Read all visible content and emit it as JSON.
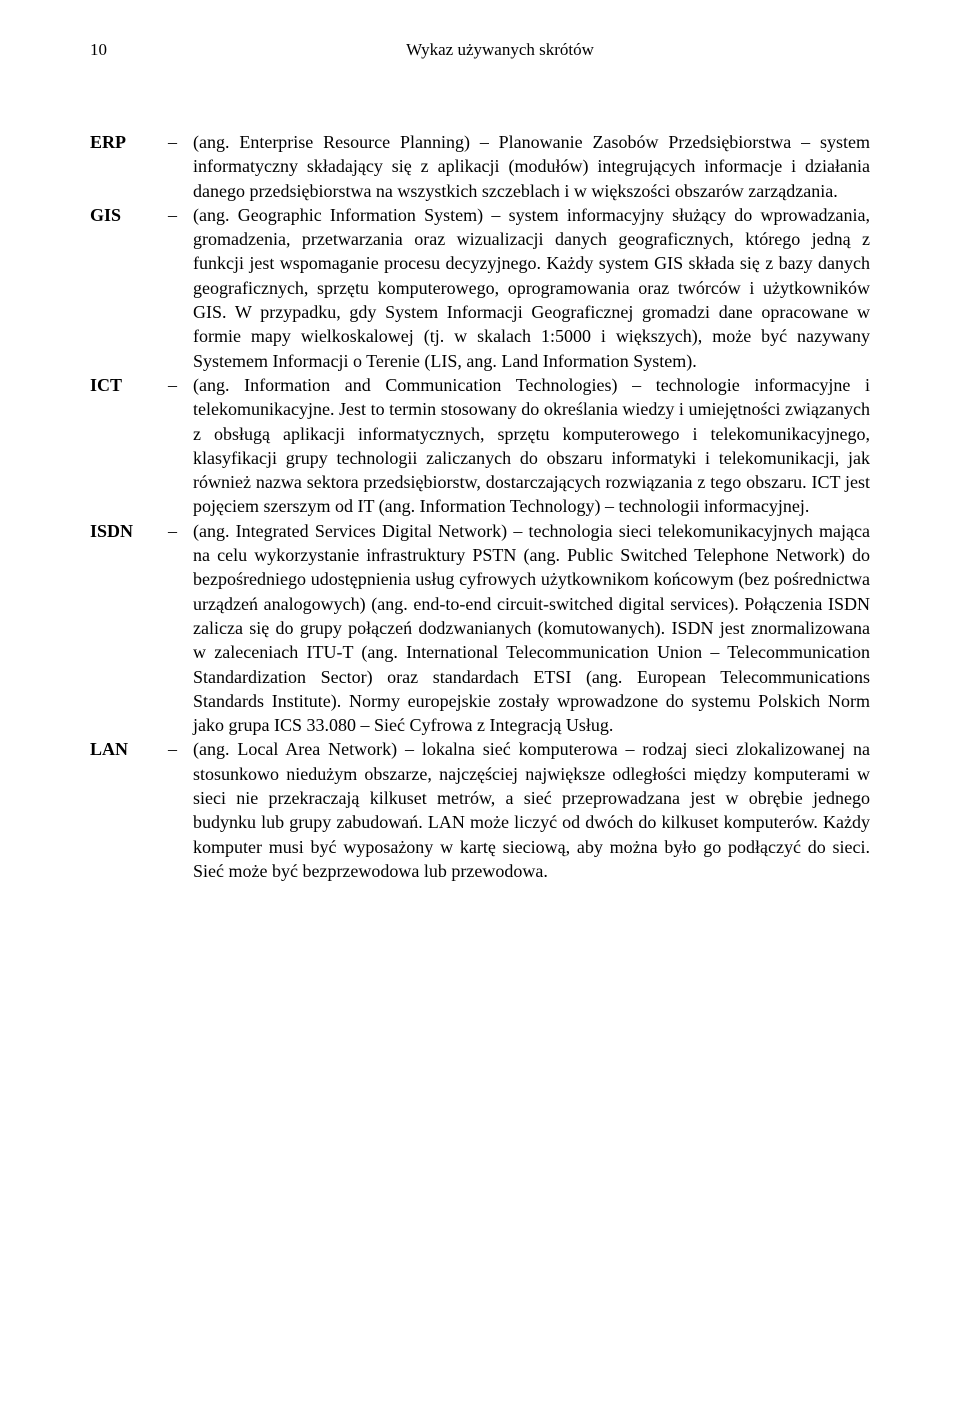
{
  "header": {
    "page_number": "10",
    "running_title": "Wykaz używanych skrótów"
  },
  "entries": [
    {
      "abbr": "ERP",
      "dash": "–",
      "definition": "(ang. Enterprise Resource Planning) – Planowanie Zasobów Przedsiębiorstwa – system informatyczny składający się z aplikacji (modułów) integrujących informacje i działania danego przedsiębiorstwa na wszystkich szczeblach i w większości obszarów zarządzania."
    },
    {
      "abbr": "GIS",
      "dash": "–",
      "definition": "(ang. Geographic Information System) – system informacyjny służący do wprowadzania, gromadzenia, przetwarzania oraz wizualizacji danych geograficznych, którego jedną z funkcji jest wspomaganie procesu decyzyjnego. Każdy system GIS składa się z bazy danych geograficznych, sprzętu komputerowego, oprogramowania oraz twórców i użytkowników GIS. W przypadku, gdy System Informacji Geograficznej gromadzi dane opracowane w formie mapy wielkoskalowej (tj. w skalach 1:5000 i większych), może być nazywany Systemem Informacji o Terenie (LIS, ang. Land Information System)."
    },
    {
      "abbr": "ICT",
      "dash": "–",
      "definition": "(ang. Information and Communication Technologies) – technologie informacyjne i telekomunikacyjne. Jest to termin stosowany do określania wiedzy i umiejętności związanych z obsługą aplikacji informatycznych, sprzętu komputerowego i telekomunikacyjnego, klasyfikacji grupy technologii zaliczanych do obszaru informatyki i telekomunikacji, jak również nazwa sektora przedsiębiorstw, dostarczających rozwiązania z tego obszaru. ICT jest pojęciem szerszym od IT (ang. Information Technology) – technologii informacyjnej."
    },
    {
      "abbr": "ISDN",
      "dash": "–",
      "definition": "(ang. Integrated Services Digital Network) – technologia sieci telekomunikacyjnych mająca na celu wykorzystanie infrastruktury PSTN (ang. Public Switched Telephone Network) do bezpośredniego udostępnienia usług cyfrowych użytkownikom końcowym (bez pośrednictwa urządzeń analogowych) (ang. end-to-end circuit-switched digital services). Połączenia ISDN zalicza się do grupy połączeń dodzwanianych (komutowanych). ISDN jest znormalizowana w zaleceniach ITU-T (ang. International Telecommunication Union – Telecommunication Standardization Sector) oraz standardach ETSI (ang. European Telecommunications Standards Institute). Normy europejskie zostały wprowadzone do systemu Polskich Norm jako grupa ICS 33.080 – Sieć Cyfrowa z Integracją Usług."
    },
    {
      "abbr": "LAN",
      "dash": "–",
      "definition": "(ang. Local Area Network) – lokalna sieć komputerowa – rodzaj sieci zlokalizowanej na stosunkowo niedużym obszarze, najczęściej największe odległości między komputerami w sieci nie przekraczają kilkuset metrów, a sieć przeprowadzana jest w obrębie jednego budynku lub grupy zabudowań. LAN może liczyć od dwóch do kilkuset komputerów. Każdy komputer musi być wyposażony w kartę sieciową, aby można było go podłączyć do sieci. Sieć może być bezprzewodowa lub przewodowa."
    }
  ]
}
